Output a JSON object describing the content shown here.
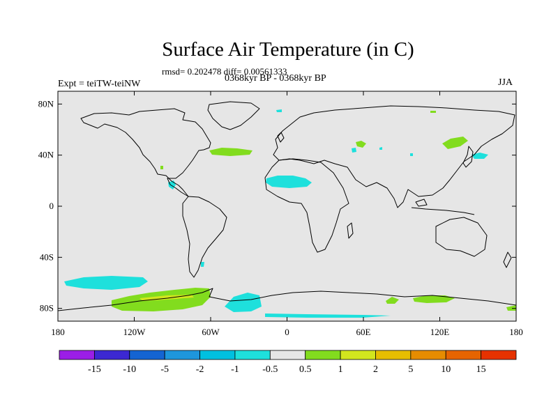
{
  "header": {
    "title": "Surface Air Temperature (in C)",
    "stats": "rmsd= 0.202478  diff= 0.00561333",
    "period": "0368kyr BP - 0368kyr BP",
    "experiment": "Expt = teiTW-teiNW",
    "season": "JJA"
  },
  "map": {
    "background_color": "#e6e6e6",
    "lat_ticks": [
      {
        "lat": 80,
        "label": "80N"
      },
      {
        "lat": 40,
        "label": "40N"
      },
      {
        "lat": 0,
        "label": "0"
      },
      {
        "lat": -40,
        "label": "40S"
      },
      {
        "lat": -80,
        "label": "80S"
      }
    ],
    "lon_ticks": [
      {
        "lon": -180,
        "label": "180"
      },
      {
        "lon": -120,
        "label": "120W"
      },
      {
        "lon": -60,
        "label": "60W"
      },
      {
        "lon": 0,
        "label": "0"
      },
      {
        "lon": 60,
        "label": "60E"
      },
      {
        "lon": 120,
        "label": "120E"
      },
      {
        "lon": 180,
        "label": "180"
      }
    ]
  },
  "colorbar": {
    "colors": [
      "#9b1ee6",
      "#3c28d2",
      "#1464d2",
      "#1e96dc",
      "#00c0e0",
      "#1ee0dc",
      "#e6e6e6",
      "#82dc1e",
      "#d2e61e",
      "#e6be00",
      "#e68c00",
      "#e66400",
      "#e63200"
    ],
    "labels": [
      "-15",
      "-10",
      "-5",
      "-2",
      "-1",
      "-0.5",
      "0.5",
      "1",
      "2",
      "5",
      "10",
      "15"
    ]
  }
}
